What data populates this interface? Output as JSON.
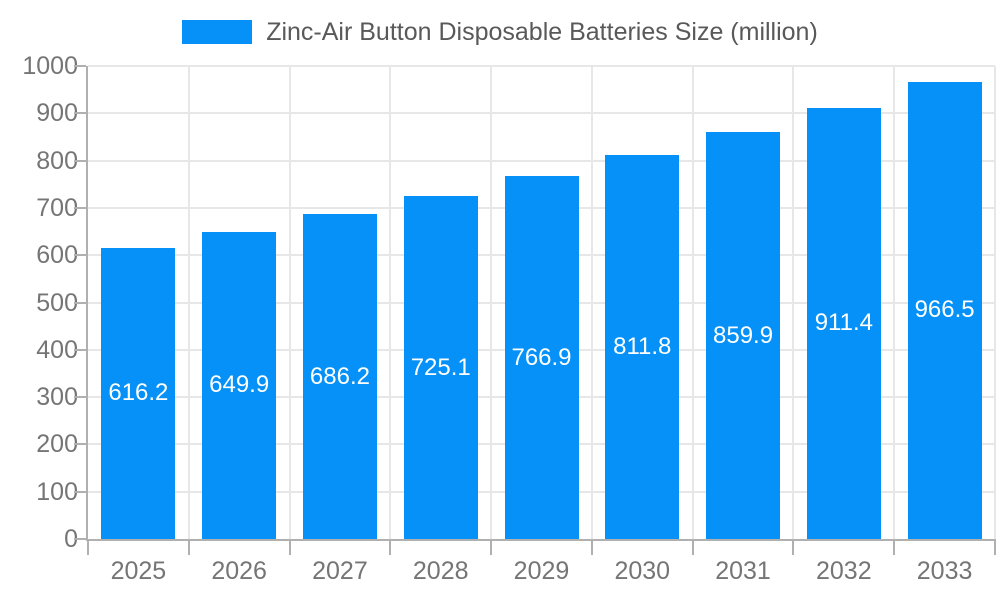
{
  "colors": {
    "bar": "#0591f7",
    "grid": "#e7e7e7",
    "axis": "#b0b0b0",
    "axis_label": "#757575",
    "title": "#595959",
    "value_label": "#ffffff",
    "background": "#ffffff"
  },
  "legend": {
    "label": "Zinc-Air Button Disposable Batteries Size (million)"
  },
  "chart_data": {
    "type": "bar",
    "title": "Zinc-Air Button Disposable Batteries Size (million)",
    "categories": [
      "2025",
      "2026",
      "2027",
      "2028",
      "2029",
      "2030",
      "2031",
      "2032",
      "2033"
    ],
    "values": [
      616.2,
      649.9,
      686.2,
      725.1,
      766.9,
      811.8,
      859.9,
      911.4,
      966.5
    ],
    "xlabel": "",
    "ylabel": "",
    "ylim": [
      0,
      1000
    ],
    "ytick_step": 100,
    "yticks": [
      0,
      100,
      200,
      300,
      400,
      500,
      600,
      700,
      800,
      900,
      1000
    ],
    "grid": true,
    "legend_position": "top-center",
    "value_labels": "inside-center",
    "bar_color": "#0591f7"
  }
}
